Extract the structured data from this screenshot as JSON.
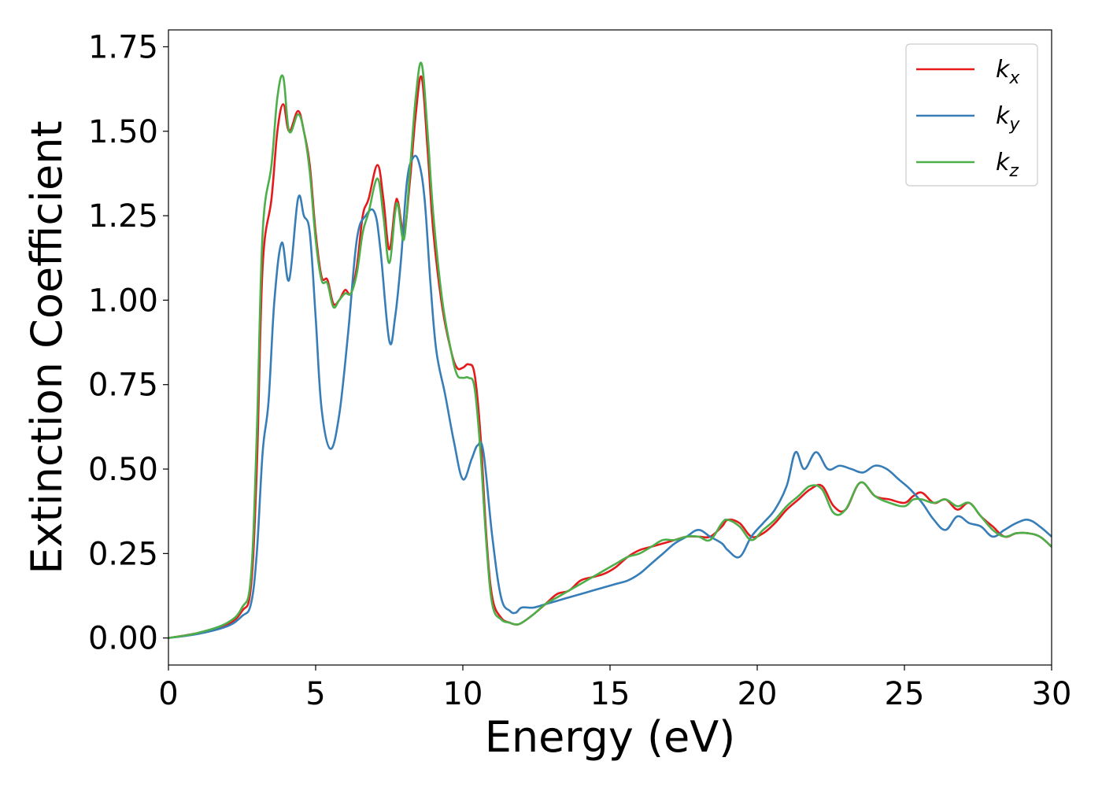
{
  "chart_data": {
    "type": "line",
    "xlabel": "Energy (eV)",
    "ylabel": "Extinction Coefficient",
    "xlim": [
      0,
      30
    ],
    "ylim": [
      -0.08,
      1.8
    ],
    "xticks": [
      0,
      5,
      10,
      15,
      20,
      25,
      30
    ],
    "xtick_labels": [
      "0",
      "5",
      "10",
      "15",
      "20",
      "25",
      "30"
    ],
    "yticks": [
      0.0,
      0.25,
      0.5,
      0.75,
      1.0,
      1.25,
      1.5,
      1.75
    ],
    "ytick_labels": [
      "0.00",
      "0.25",
      "0.50",
      "0.75",
      "1.00",
      "1.25",
      "1.50",
      "1.75"
    ],
    "grid": false,
    "legend_position": "top-right",
    "series": [
      {
        "name": "kx",
        "label_base": "k",
        "label_sub": "x",
        "color": "#e41a1c",
        "x": [
          0,
          1,
          2,
          2.5,
          2.8,
          3.0,
          3.2,
          3.5,
          3.7,
          3.9,
          4.1,
          4.4,
          4.6,
          4.8,
          5.0,
          5.2,
          5.4,
          5.6,
          5.8,
          6.0,
          6.2,
          6.4,
          6.6,
          6.8,
          7.1,
          7.3,
          7.5,
          7.7,
          7.8,
          8.0,
          8.2,
          8.4,
          8.6,
          8.8,
          9.0,
          9.3,
          9.6,
          9.8,
          10.0,
          10.2,
          10.4,
          10.6,
          10.8,
          11.0,
          11.3,
          11.6,
          11.8,
          12.0,
          12.4,
          12.8,
          13.2,
          13.6,
          14.0,
          14.4,
          14.8,
          15.2,
          15.6,
          16.0,
          16.4,
          16.8,
          17.2,
          17.6,
          18.0,
          18.4,
          18.8,
          19.0,
          19.4,
          19.8,
          20.2,
          20.6,
          21.0,
          21.4,
          21.8,
          22.2,
          22.6,
          23.0,
          23.5,
          24.0,
          24.5,
          25.0,
          25.3,
          25.6,
          26.0,
          26.4,
          26.8,
          27.2,
          27.6,
          28.0,
          28.4,
          28.8,
          29.2,
          29.6,
          30.0
        ],
        "values": [
          0.0,
          0.015,
          0.04,
          0.08,
          0.15,
          0.5,
          1.1,
          1.3,
          1.5,
          1.58,
          1.5,
          1.56,
          1.5,
          1.4,
          1.2,
          1.07,
          1.06,
          0.99,
          1.0,
          1.03,
          1.02,
          1.1,
          1.25,
          1.3,
          1.4,
          1.3,
          1.15,
          1.28,
          1.29,
          1.2,
          1.35,
          1.55,
          1.66,
          1.45,
          1.2,
          0.98,
          0.85,
          0.8,
          0.8,
          0.81,
          0.78,
          0.6,
          0.3,
          0.12,
          0.06,
          0.045,
          0.04,
          0.045,
          0.07,
          0.1,
          0.13,
          0.14,
          0.17,
          0.18,
          0.19,
          0.21,
          0.24,
          0.26,
          0.27,
          0.28,
          0.29,
          0.3,
          0.3,
          0.3,
          0.33,
          0.35,
          0.34,
          0.3,
          0.31,
          0.34,
          0.38,
          0.41,
          0.44,
          0.45,
          0.39,
          0.38,
          0.46,
          0.42,
          0.41,
          0.4,
          0.42,
          0.43,
          0.4,
          0.41,
          0.38,
          0.4,
          0.36,
          0.33,
          0.3,
          0.31,
          0.31,
          0.3,
          0.27
        ]
      },
      {
        "name": "ky",
        "label_base": "k",
        "label_sub": "y",
        "color": "#377eb8",
        "x": [
          0,
          1,
          2,
          2.5,
          2.8,
          3.0,
          3.2,
          3.4,
          3.6,
          3.85,
          4.1,
          4.4,
          4.6,
          4.8,
          5.0,
          5.2,
          5.5,
          5.8,
          6.1,
          6.4,
          6.7,
          7.0,
          7.2,
          7.5,
          7.7,
          7.9,
          8.1,
          8.3,
          8.5,
          8.7,
          8.9,
          9.1,
          9.4,
          9.7,
          10.0,
          10.3,
          10.5,
          10.7,
          11.0,
          11.3,
          11.6,
          11.8,
          12.0,
          12.4,
          12.8,
          13.2,
          13.6,
          14.0,
          14.4,
          14.8,
          15.2,
          15.6,
          16.0,
          16.4,
          16.8,
          17.2,
          17.6,
          18.0,
          18.4,
          18.8,
          19.0,
          19.4,
          19.8,
          20.2,
          20.6,
          21.0,
          21.3,
          21.6,
          22.0,
          22.4,
          22.8,
          23.2,
          23.6,
          24.0,
          24.4,
          24.8,
          25.2,
          25.6,
          26.0,
          26.4,
          26.8,
          27.2,
          27.6,
          28.0,
          28.4,
          28.8,
          29.2,
          29.6,
          30.0
        ],
        "values": [
          0.0,
          0.012,
          0.035,
          0.065,
          0.1,
          0.25,
          0.55,
          0.7,
          1.0,
          1.17,
          1.06,
          1.3,
          1.25,
          1.2,
          0.95,
          0.68,
          0.56,
          0.66,
          0.9,
          1.18,
          1.25,
          1.26,
          1.15,
          0.88,
          0.95,
          1.12,
          1.35,
          1.42,
          1.41,
          1.3,
          1.05,
          0.85,
          0.72,
          0.58,
          0.47,
          0.53,
          0.57,
          0.55,
          0.3,
          0.12,
          0.08,
          0.075,
          0.09,
          0.09,
          0.1,
          0.11,
          0.12,
          0.13,
          0.14,
          0.15,
          0.16,
          0.17,
          0.19,
          0.22,
          0.25,
          0.28,
          0.3,
          0.32,
          0.3,
          0.28,
          0.26,
          0.24,
          0.3,
          0.34,
          0.38,
          0.45,
          0.55,
          0.5,
          0.55,
          0.5,
          0.51,
          0.5,
          0.49,
          0.51,
          0.5,
          0.47,
          0.44,
          0.4,
          0.35,
          0.32,
          0.36,
          0.34,
          0.33,
          0.3,
          0.32,
          0.34,
          0.35,
          0.33,
          0.3
        ]
      },
      {
        "name": "kz",
        "label_base": "k",
        "label_sub": "z",
        "color": "#4daf4a",
        "x": [
          0,
          1,
          2,
          2.5,
          2.8,
          3.0,
          3.2,
          3.5,
          3.7,
          3.9,
          4.1,
          4.4,
          4.6,
          4.8,
          5.0,
          5.2,
          5.4,
          5.6,
          5.8,
          6.0,
          6.2,
          6.4,
          6.6,
          6.8,
          7.1,
          7.3,
          7.5,
          7.7,
          7.8,
          8.0,
          8.2,
          8.4,
          8.6,
          8.8,
          9.0,
          9.3,
          9.6,
          9.8,
          10.0,
          10.2,
          10.4,
          10.6,
          10.8,
          11.0,
          11.3,
          11.6,
          11.8,
          12.0,
          12.4,
          12.8,
          13.2,
          13.6,
          14.0,
          14.4,
          14.8,
          15.2,
          15.6,
          16.0,
          16.4,
          16.8,
          17.2,
          17.6,
          18.0,
          18.4,
          18.8,
          19.0,
          19.4,
          19.8,
          20.2,
          20.6,
          21.0,
          21.4,
          21.8,
          22.2,
          22.6,
          23.0,
          23.5,
          24.0,
          24.5,
          25.0,
          25.3,
          25.6,
          26.0,
          26.4,
          26.8,
          27.2,
          27.6,
          28.0,
          28.4,
          28.8,
          29.2,
          29.6,
          30.0
        ],
        "values": [
          0.0,
          0.015,
          0.045,
          0.09,
          0.18,
          0.6,
          1.2,
          1.4,
          1.6,
          1.66,
          1.5,
          1.55,
          1.5,
          1.38,
          1.18,
          1.06,
          1.05,
          0.98,
          1.0,
          1.02,
          1.02,
          1.08,
          1.2,
          1.26,
          1.36,
          1.25,
          1.11,
          1.26,
          1.28,
          1.18,
          1.38,
          1.6,
          1.7,
          1.5,
          1.25,
          1.0,
          0.85,
          0.78,
          0.77,
          0.77,
          0.74,
          0.55,
          0.28,
          0.1,
          0.055,
          0.045,
          0.04,
          0.045,
          0.07,
          0.1,
          0.12,
          0.14,
          0.16,
          0.18,
          0.2,
          0.22,
          0.24,
          0.25,
          0.27,
          0.29,
          0.29,
          0.3,
          0.3,
          0.29,
          0.34,
          0.35,
          0.33,
          0.29,
          0.32,
          0.35,
          0.39,
          0.42,
          0.45,
          0.44,
          0.37,
          0.38,
          0.46,
          0.42,
          0.4,
          0.39,
          0.41,
          0.41,
          0.4,
          0.41,
          0.39,
          0.4,
          0.36,
          0.32,
          0.3,
          0.31,
          0.31,
          0.3,
          0.27
        ]
      }
    ]
  }
}
